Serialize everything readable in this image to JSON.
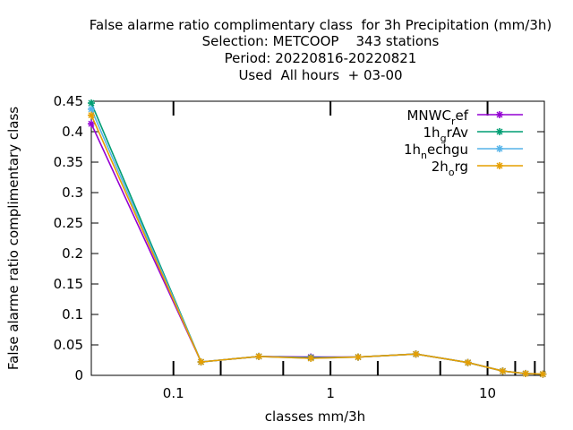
{
  "title_lines": [
    "False alarme ratio complimentary class  for 3h Precipitation (mm/3h)",
    "Selection: METCOOP    343 stations",
    "Period: 20220816-20220821",
    "Used  All hours  + 03-00"
  ],
  "chart_data": {
    "type": "line",
    "xlabel": "classes mm/3h",
    "ylabel": "False alarme ratio complimentary class",
    "x_scale": "log",
    "xlim": [
      0.03,
      23
    ],
    "ylim": [
      0,
      0.45
    ],
    "x_ticks": [
      {
        "value": 0.1,
        "label": "0.1"
      },
      {
        "value": 1,
        "label": "1"
      },
      {
        "value": 10,
        "label": "10"
      }
    ],
    "x_minor_ticks": [
      0.2,
      0.5,
      2,
      5,
      15,
      20
    ],
    "y_ticks": [
      {
        "value": 0,
        "label": "0"
      },
      {
        "value": 0.05,
        "label": "0.05"
      },
      {
        "value": 0.1,
        "label": "0.1"
      },
      {
        "value": 0.15,
        "label": "0.15"
      },
      {
        "value": 0.2,
        "label": "0.2"
      },
      {
        "value": 0.25,
        "label": "0.25"
      },
      {
        "value": 0.3,
        "label": "0.3"
      },
      {
        "value": 0.35,
        "label": "0.35"
      },
      {
        "value": 0.4,
        "label": "0.4"
      },
      {
        "value": 0.45,
        "label": "0.45"
      }
    ],
    "grid": false,
    "legend_position": "top-right",
    "series": [
      {
        "name": "MNWC_ref",
        "base": "MNWC",
        "sub": "r",
        "rest": "ef",
        "color": "#9400d3",
        "x": [
          0.03,
          0.15,
          0.35,
          0.75,
          1.5,
          3.5,
          7.5,
          12.5,
          17.5,
          22.5
        ],
        "y": [
          0.413,
          0.022,
          0.031,
          0.03,
          0.03,
          0.035,
          0.021,
          0.007,
          0.003,
          0.002
        ]
      },
      {
        "name": "1h_grAv",
        "base": "1h",
        "sub": "g",
        "rest": "rAv",
        "color": "#009e73",
        "x": [
          0.03,
          0.15,
          0.35,
          0.75,
          1.5,
          3.5,
          7.5,
          12.5,
          17.5,
          22.5
        ],
        "y": [
          0.447,
          0.022,
          0.031,
          0.029,
          0.03,
          0.035,
          0.021,
          0.007,
          0.003,
          0.002
        ]
      },
      {
        "name": "1h_nechgu",
        "base": "1h",
        "sub": "n",
        "rest": "echgu",
        "color": "#56b4e9",
        "x": [
          0.03,
          0.15,
          0.35,
          0.75,
          1.5,
          3.5,
          7.5,
          12.5,
          17.5,
          22.5
        ],
        "y": [
          0.437,
          0.022,
          0.031,
          0.028,
          0.03,
          0.035,
          0.021,
          0.007,
          0.003,
          0.002
        ]
      },
      {
        "name": "2h_org",
        "base": "2h",
        "sub": "o",
        "rest": "rg",
        "color": "#e69f00",
        "x": [
          0.03,
          0.15,
          0.35,
          0.75,
          1.5,
          3.5,
          7.5,
          12.5,
          17.5,
          22.5
        ],
        "y": [
          0.427,
          0.022,
          0.031,
          0.028,
          0.03,
          0.035,
          0.021,
          0.007,
          0.003,
          0.002
        ]
      }
    ]
  }
}
